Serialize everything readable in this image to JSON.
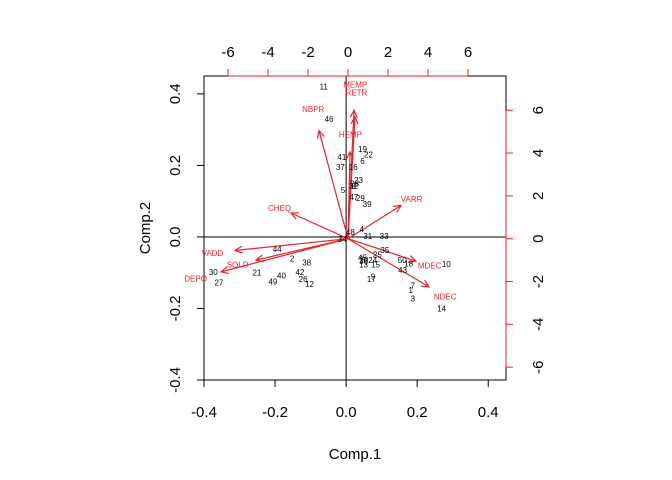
{
  "chart_data": {
    "type": "scatter",
    "subtype": "biplot",
    "title": "",
    "xlabel": "Comp.1",
    "ylabel": "Comp.2",
    "xlim": [
      -0.4,
      0.45
    ],
    "ylim": [
      -0.4,
      0.45
    ],
    "x_ticks": [
      -0.4,
      -0.2,
      0.0,
      0.2,
      0.4
    ],
    "y_ticks": [
      -0.4,
      -0.2,
      0.0,
      0.2,
      0.4
    ],
    "x_tick_labels": [
      "-0.4",
      "-0.2",
      "0.0",
      "0.2",
      "0.4"
    ],
    "y_tick_labels": [
      "-0.4",
      "-0.2",
      "0.0",
      "0.2",
      "0.4"
    ],
    "loading_xlim": [
      -7.2,
      7.9
    ],
    "loading_ylim": [
      -6.6,
      7.6
    ],
    "top_ticks": [
      -6,
      -4,
      -2,
      0,
      2,
      4,
      6
    ],
    "top_tick_labels": [
      "-6",
      "-4",
      "-2",
      "0",
      "2",
      "4",
      "6"
    ],
    "right_ticks": [
      -6,
      -4,
      -2,
      0,
      2,
      4,
      6
    ],
    "right_tick_labels": [
      "-6",
      "-4",
      "-2",
      "0",
      "2",
      "4",
      "6"
    ],
    "grid": false,
    "colors": {
      "points": "#000000",
      "arrows": "#e8242a"
    },
    "observations": [
      {
        "label": "1",
        "x": 0.182,
        "y": -0.148
      },
      {
        "label": "2",
        "x": -0.152,
        "y": -0.06
      },
      {
        "label": "3",
        "x": 0.188,
        "y": -0.172
      },
      {
        "label": "4",
        "x": 0.044,
        "y": 0.022
      },
      {
        "label": "5",
        "x": -0.009,
        "y": 0.131
      },
      {
        "label": "6",
        "x": 0.046,
        "y": 0.212
      },
      {
        "label": "7",
        "x": 0.188,
        "y": -0.136
      },
      {
        "label": "8",
        "x": 0.021,
        "y": 0.142
      },
      {
        "label": "9",
        "x": 0.076,
        "y": -0.111
      },
      {
        "label": "10",
        "x": 0.282,
        "y": -0.076
      },
      {
        "label": "11",
        "x": -0.063,
        "y": 0.42
      },
      {
        "label": "12",
        "x": -0.103,
        "y": -0.132
      },
      {
        "label": "13",
        "x": 0.049,
        "y": -0.077
      },
      {
        "label": "14",
        "x": 0.269,
        "y": -0.2
      },
      {
        "label": "15",
        "x": 0.083,
        "y": -0.077
      },
      {
        "label": "16",
        "x": 0.02,
        "y": 0.195
      },
      {
        "label": "17",
        "x": 0.071,
        "y": -0.118
      },
      {
        "label": "18",
        "x": 0.176,
        "y": -0.074
      },
      {
        "label": "19",
        "x": 0.046,
        "y": 0.246
      },
      {
        "label": "20",
        "x": 0.05,
        "y": -0.063
      },
      {
        "label": "21",
        "x": -0.251,
        "y": -0.099
      },
      {
        "label": "22",
        "x": 0.063,
        "y": 0.23
      },
      {
        "label": "23",
        "x": 0.035,
        "y": 0.159
      },
      {
        "label": "24",
        "x": 0.075,
        "y": -0.065
      },
      {
        "label": "25",
        "x": 0.088,
        "y": -0.049
      },
      {
        "label": "26",
        "x": -0.121,
        "y": -0.118
      },
      {
        "label": "27",
        "x": -0.358,
        "y": -0.127
      },
      {
        "label": "28",
        "x": 0.024,
        "y": 0.149
      },
      {
        "label": "29",
        "x": 0.04,
        "y": 0.109
      },
      {
        "label": "30",
        "x": -0.374,
        "y": -0.098
      },
      {
        "label": "31",
        "x": 0.061,
        "y": 0.003
      },
      {
        "label": "32",
        "x": 0.021,
        "y": 0.142
      },
      {
        "label": "33",
        "x": 0.107,
        "y": 0.002
      },
      {
        "label": "34",
        "x": -0.011,
        "y": -0.006
      },
      {
        "label": "35",
        "x": 0.109,
        "y": -0.036
      },
      {
        "label": "36",
        "x": 0.049,
        "y": -0.067
      },
      {
        "label": "37",
        "x": -0.016,
        "y": 0.195
      },
      {
        "label": "38",
        "x": -0.111,
        "y": -0.072
      },
      {
        "label": "39",
        "x": 0.059,
        "y": 0.092
      },
      {
        "label": "40",
        "x": -0.182,
        "y": -0.108
      },
      {
        "label": "41",
        "x": -0.012,
        "y": 0.224
      },
      {
        "label": "42",
        "x": -0.13,
        "y": -0.098
      },
      {
        "label": "43",
        "x": 0.159,
        "y": -0.092
      },
      {
        "label": "44",
        "x": -0.194,
        "y": -0.034
      },
      {
        "label": "45",
        "x": 0.046,
        "y": -0.058
      },
      {
        "label": "46",
        "x": -0.048,
        "y": 0.33
      },
      {
        "label": "47",
        "x": 0.022,
        "y": 0.111
      },
      {
        "label": "48",
        "x": 0.012,
        "y": 0.014
      },
      {
        "label": "49",
        "x": -0.206,
        "y": -0.125
      },
      {
        "label": "50",
        "x": 0.158,
        "y": -0.064
      }
    ],
    "variables": [
      {
        "name": "MEMP",
        "x": 0.3,
        "y": 6.0
      },
      {
        "name": "RETR",
        "x": 0.35,
        "y": 5.7
      },
      {
        "name": "NBPR",
        "x": -1.45,
        "y": 5.05
      },
      {
        "name": "HEMP",
        "x": 0.1,
        "y": 4.05
      },
      {
        "name": "VARR",
        "x": 2.65,
        "y": 1.55
      },
      {
        "name": "CHEQ",
        "x": -2.85,
        "y": 1.2
      },
      {
        "name": "VADD",
        "x": -5.65,
        "y": -0.55
      },
      {
        "name": "SOLD",
        "x": -4.6,
        "y": -1.0
      },
      {
        "name": "DEPO",
        "x": -6.35,
        "y": -1.55
      },
      {
        "name": "MDEC",
        "x": 3.4,
        "y": -1.05
      },
      {
        "name": "NDEC",
        "x": 4.05,
        "y": -2.25
      }
    ]
  }
}
